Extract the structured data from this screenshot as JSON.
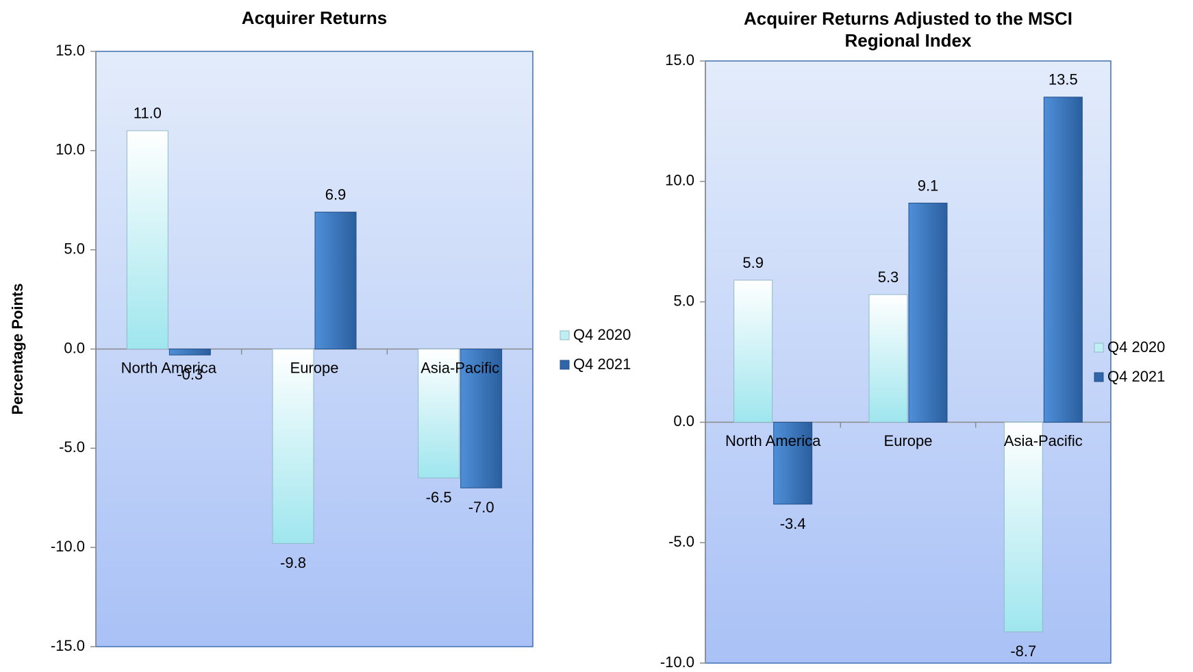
{
  "chart_data": [
    {
      "type": "bar",
      "title": "Acquirer Returns",
      "ylabel": "Percentage Points",
      "ylim": [
        -15,
        15
      ],
      "ytick_step": 5,
      "ytick_labels": [
        "15.0",
        "10.0",
        "5.0",
        "0.0",
        "-5.0",
        "-10.0",
        "-15.0"
      ],
      "categories": [
        "North America",
        "Europe",
        "Asia-Pacific"
      ],
      "series": [
        {
          "name": "Q4 2020",
          "values": [
            11.0,
            -9.8,
            -6.5
          ],
          "labels": [
            "11.0",
            "-9.8",
            "-6.5"
          ]
        },
        {
          "name": "Q4 2021",
          "values": [
            -0.3,
            6.9,
            -7.0
          ],
          "labels": [
            "-0.3",
            "6.9",
            "-7.0"
          ]
        }
      ],
      "legend_position": "right",
      "grid": false
    },
    {
      "type": "bar",
      "title": "Acquirer Returns Adjusted to the MSCI Regional Index",
      "title_lines": [
        "Acquirer Returns Adjusted to the MSCI",
        "Regional Index"
      ],
      "ylabel": "",
      "ylim": [
        -10,
        15
      ],
      "ytick_step": 5,
      "ytick_labels": [
        "15.0",
        "10.0",
        "5.0",
        "0.0",
        "-5.0",
        "-10.0"
      ],
      "categories": [
        "North America",
        "Europe",
        "Asia-Pacific"
      ],
      "series": [
        {
          "name": "Q4 2020",
          "values": [
            5.9,
            5.3,
            -8.7
          ],
          "labels": [
            "5.9",
            "5.3",
            "-8.7"
          ]
        },
        {
          "name": "Q4 2021",
          "values": [
            -3.4,
            9.1,
            13.5
          ],
          "labels": [
            "-3.4",
            "9.1",
            "13.5"
          ]
        }
      ],
      "legend_position": "right",
      "grid": false
    }
  ],
  "colors": {
    "plot_top": "#e3ecfb",
    "plot_bottom": "#a9c1f6",
    "plot_border": "#3f6fb0",
    "axis_line": "#8a8a8a",
    "q4_2020_light": "#ffffff",
    "q4_2020_dark": "#9fe6ee",
    "q4_2021_light": "#4f8fd8",
    "q4_2021_dark": "#2a5f9e"
  }
}
